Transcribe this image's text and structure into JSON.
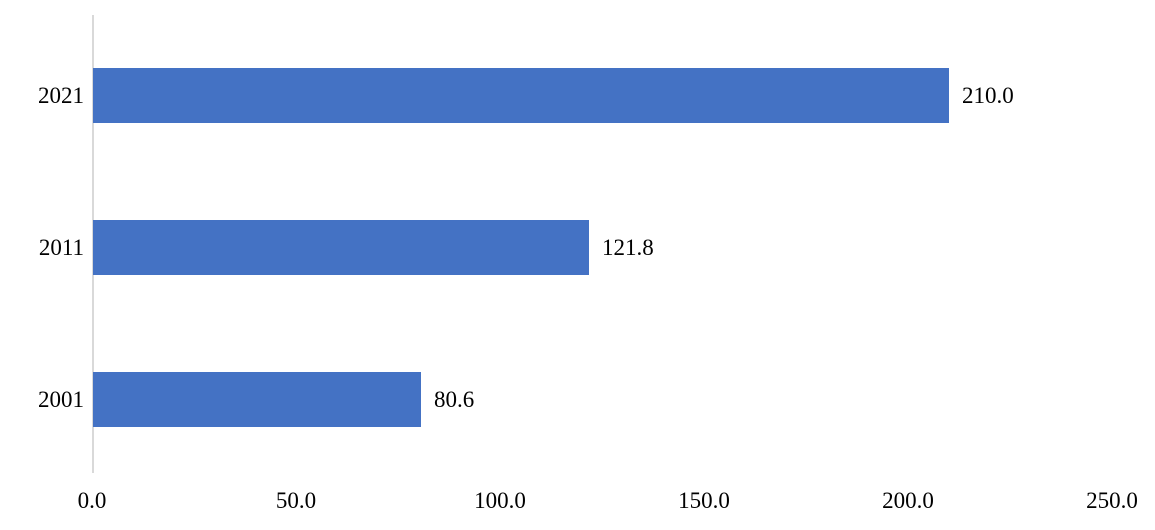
{
  "chart_data": {
    "type": "bar",
    "orientation": "horizontal",
    "categories": [
      "2021",
      "2011",
      "2001"
    ],
    "values": [
      210.0,
      121.8,
      80.6
    ],
    "value_labels": [
      "210.0",
      "121.8",
      "80.6"
    ],
    "title": "",
    "xlabel": "",
    "ylabel": "",
    "xlim": [
      0,
      250
    ],
    "x_ticks": [
      0,
      50,
      100,
      150,
      200,
      250
    ],
    "x_tick_labels": [
      "0.0",
      "50.0",
      "100.0",
      "150.0",
      "200.0",
      "250.0"
    ],
    "grid": false,
    "legend": false,
    "bar_color": "#4472c4",
    "axis_line_color": "#d9d9d9",
    "text_color": "#000000"
  }
}
